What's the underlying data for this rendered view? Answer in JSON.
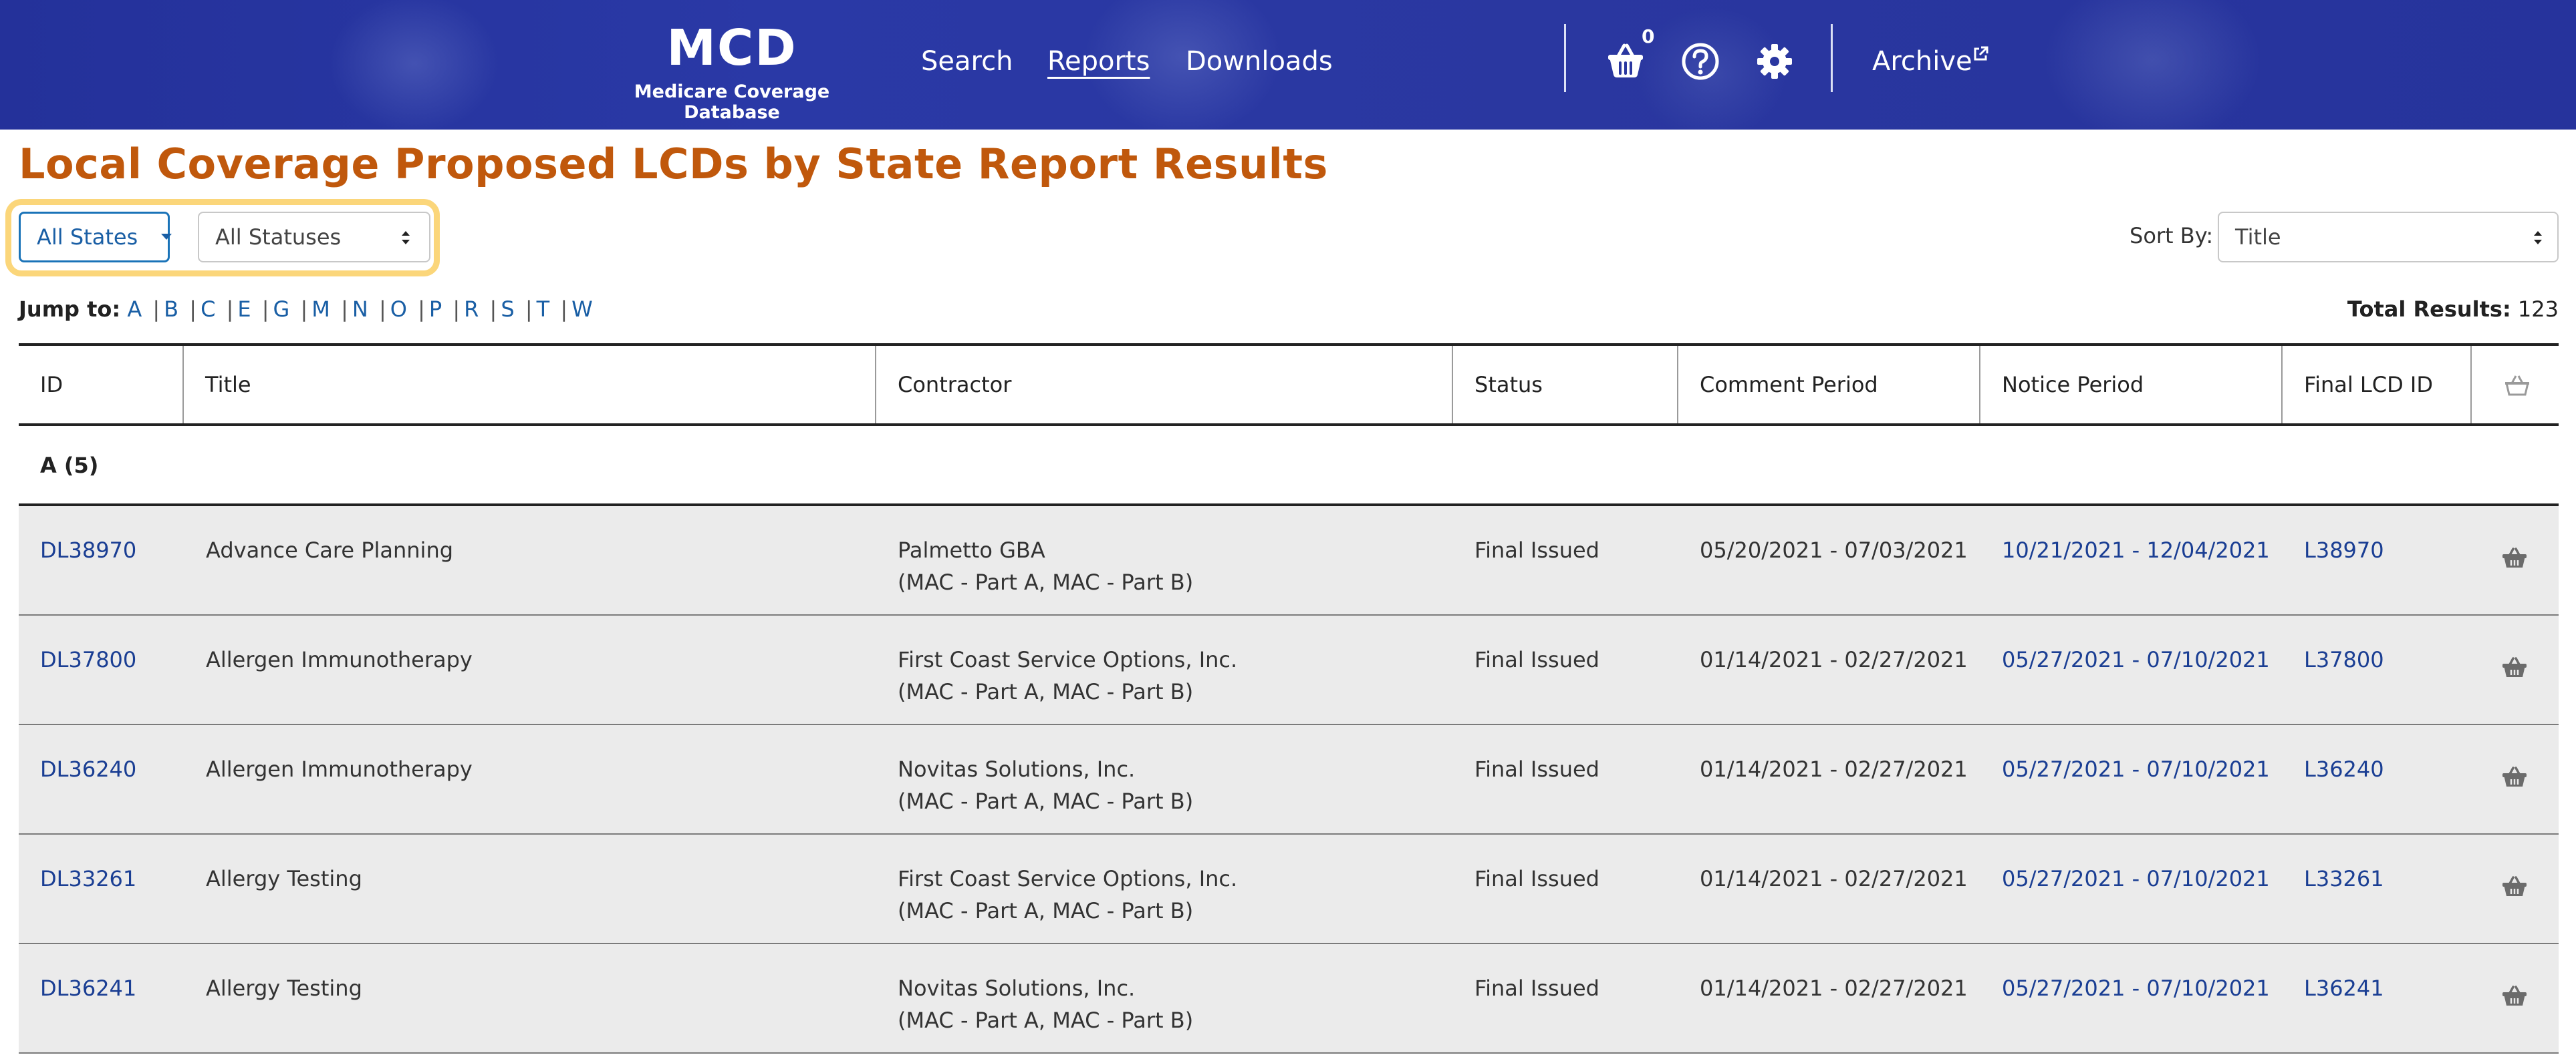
{
  "header": {
    "logo_title": "MCD",
    "logo_subtitle": "Medicare Coverage Database",
    "nav": [
      {
        "label": "Search"
      },
      {
        "label": "Reports"
      },
      {
        "label": "Downloads"
      }
    ],
    "cart_count": "0",
    "archive_label": "Archive",
    "icons": [
      "cart-icon",
      "help-icon",
      "gear-icon",
      "external-link-icon"
    ]
  },
  "page": {
    "title": "Local Coverage Proposed LCDs by State Report Results"
  },
  "filters": {
    "states_label": "All States",
    "status_value": "All Statuses",
    "sort_label": "Sort By:",
    "sort_value": "Title"
  },
  "jump": {
    "label": "Jump to:",
    "letters": [
      "A",
      "B",
      "C",
      "E",
      "G",
      "M",
      "N",
      "O",
      "P",
      "R",
      "S",
      "T",
      "W"
    ]
  },
  "total": {
    "label": "Total Results:",
    "value": "123"
  },
  "table": {
    "headers": [
      "ID",
      "Title",
      "Contractor",
      "Status",
      "Comment Period",
      "Notice Period",
      "Final LCD ID"
    ],
    "group_label": "A (5)",
    "rows": [
      {
        "id": "DL38970",
        "title": "Advance Care Planning",
        "contractor": "Palmetto GBA",
        "contractor_type": "(MAC - Part A, MAC - Part B)",
        "status": "Final Issued",
        "comment": "05/20/2021 - 07/03/2021",
        "notice": "10/21/2021 - 12/04/2021",
        "final": "L38970"
      },
      {
        "id": "DL37800",
        "title": "Allergen Immunotherapy",
        "contractor": "First Coast Service Options, Inc.",
        "contractor_type": "(MAC - Part A, MAC - Part B)",
        "status": "Final Issued",
        "comment": "01/14/2021 - 02/27/2021",
        "notice": "05/27/2021 - 07/10/2021",
        "final": "L37800"
      },
      {
        "id": "DL36240",
        "title": "Allergen Immunotherapy",
        "contractor": "Novitas Solutions, Inc.",
        "contractor_type": "(MAC - Part A, MAC - Part B)",
        "status": "Final Issued",
        "comment": "01/14/2021 - 02/27/2021",
        "notice": "05/27/2021 - 07/10/2021",
        "final": "L36240"
      },
      {
        "id": "DL33261",
        "title": "Allergy Testing",
        "contractor": "First Coast Service Options, Inc.",
        "contractor_type": "(MAC - Part A, MAC - Part B)",
        "status": "Final Issued",
        "comment": "01/14/2021 - 02/27/2021",
        "notice": "05/27/2021 - 07/10/2021",
        "final": "L33261"
      },
      {
        "id": "DL36241",
        "title": "Allergy Testing",
        "contractor": "Novitas Solutions, Inc.",
        "contractor_type": "(MAC - Part A, MAC - Part B)",
        "status": "Final Issued",
        "comment": "01/14/2021 - 02/27/2021",
        "notice": "05/27/2021 - 07/10/2021",
        "final": "L36241"
      }
    ]
  },
  "colors": {
    "header_bg": "#2a37a0",
    "title": "#c0580c",
    "link": "#1a3e93",
    "highlight": "#fbd67a",
    "row_bg": "#ebebeb"
  }
}
